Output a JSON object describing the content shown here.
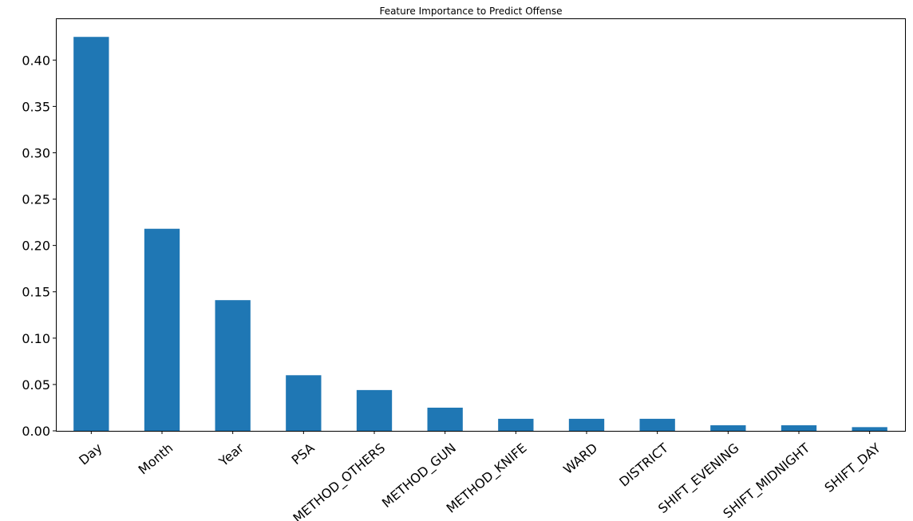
{
  "chart_data": {
    "type": "bar",
    "title": "Feature Importance to Predict Offense",
    "xlabel": "",
    "ylabel": "",
    "categories": [
      "Day",
      "Month",
      "Year",
      "PSA",
      "METHOD_OTHERS",
      "METHOD_GUN",
      "METHOD_KNIFE",
      "WARD",
      "DISTRICT",
      "SHIFT_EVENING",
      "SHIFT_MIDNIGHT",
      "SHIFT_DAY"
    ],
    "values": [
      0.425,
      0.218,
      0.141,
      0.06,
      0.044,
      0.025,
      0.013,
      0.013,
      0.013,
      0.006,
      0.006,
      0.004
    ],
    "ylim": [
      0,
      0.445
    ],
    "yticks": [
      0.0,
      0.05,
      0.1,
      0.15,
      0.2,
      0.25,
      0.3,
      0.35,
      0.4
    ],
    "ytick_labels": [
      "0.00",
      "0.05",
      "0.10",
      "0.15",
      "0.20",
      "0.25",
      "0.30",
      "0.35",
      "0.40"
    ],
    "bar_color": "#1f77b4",
    "grid": false,
    "legend": "none"
  }
}
